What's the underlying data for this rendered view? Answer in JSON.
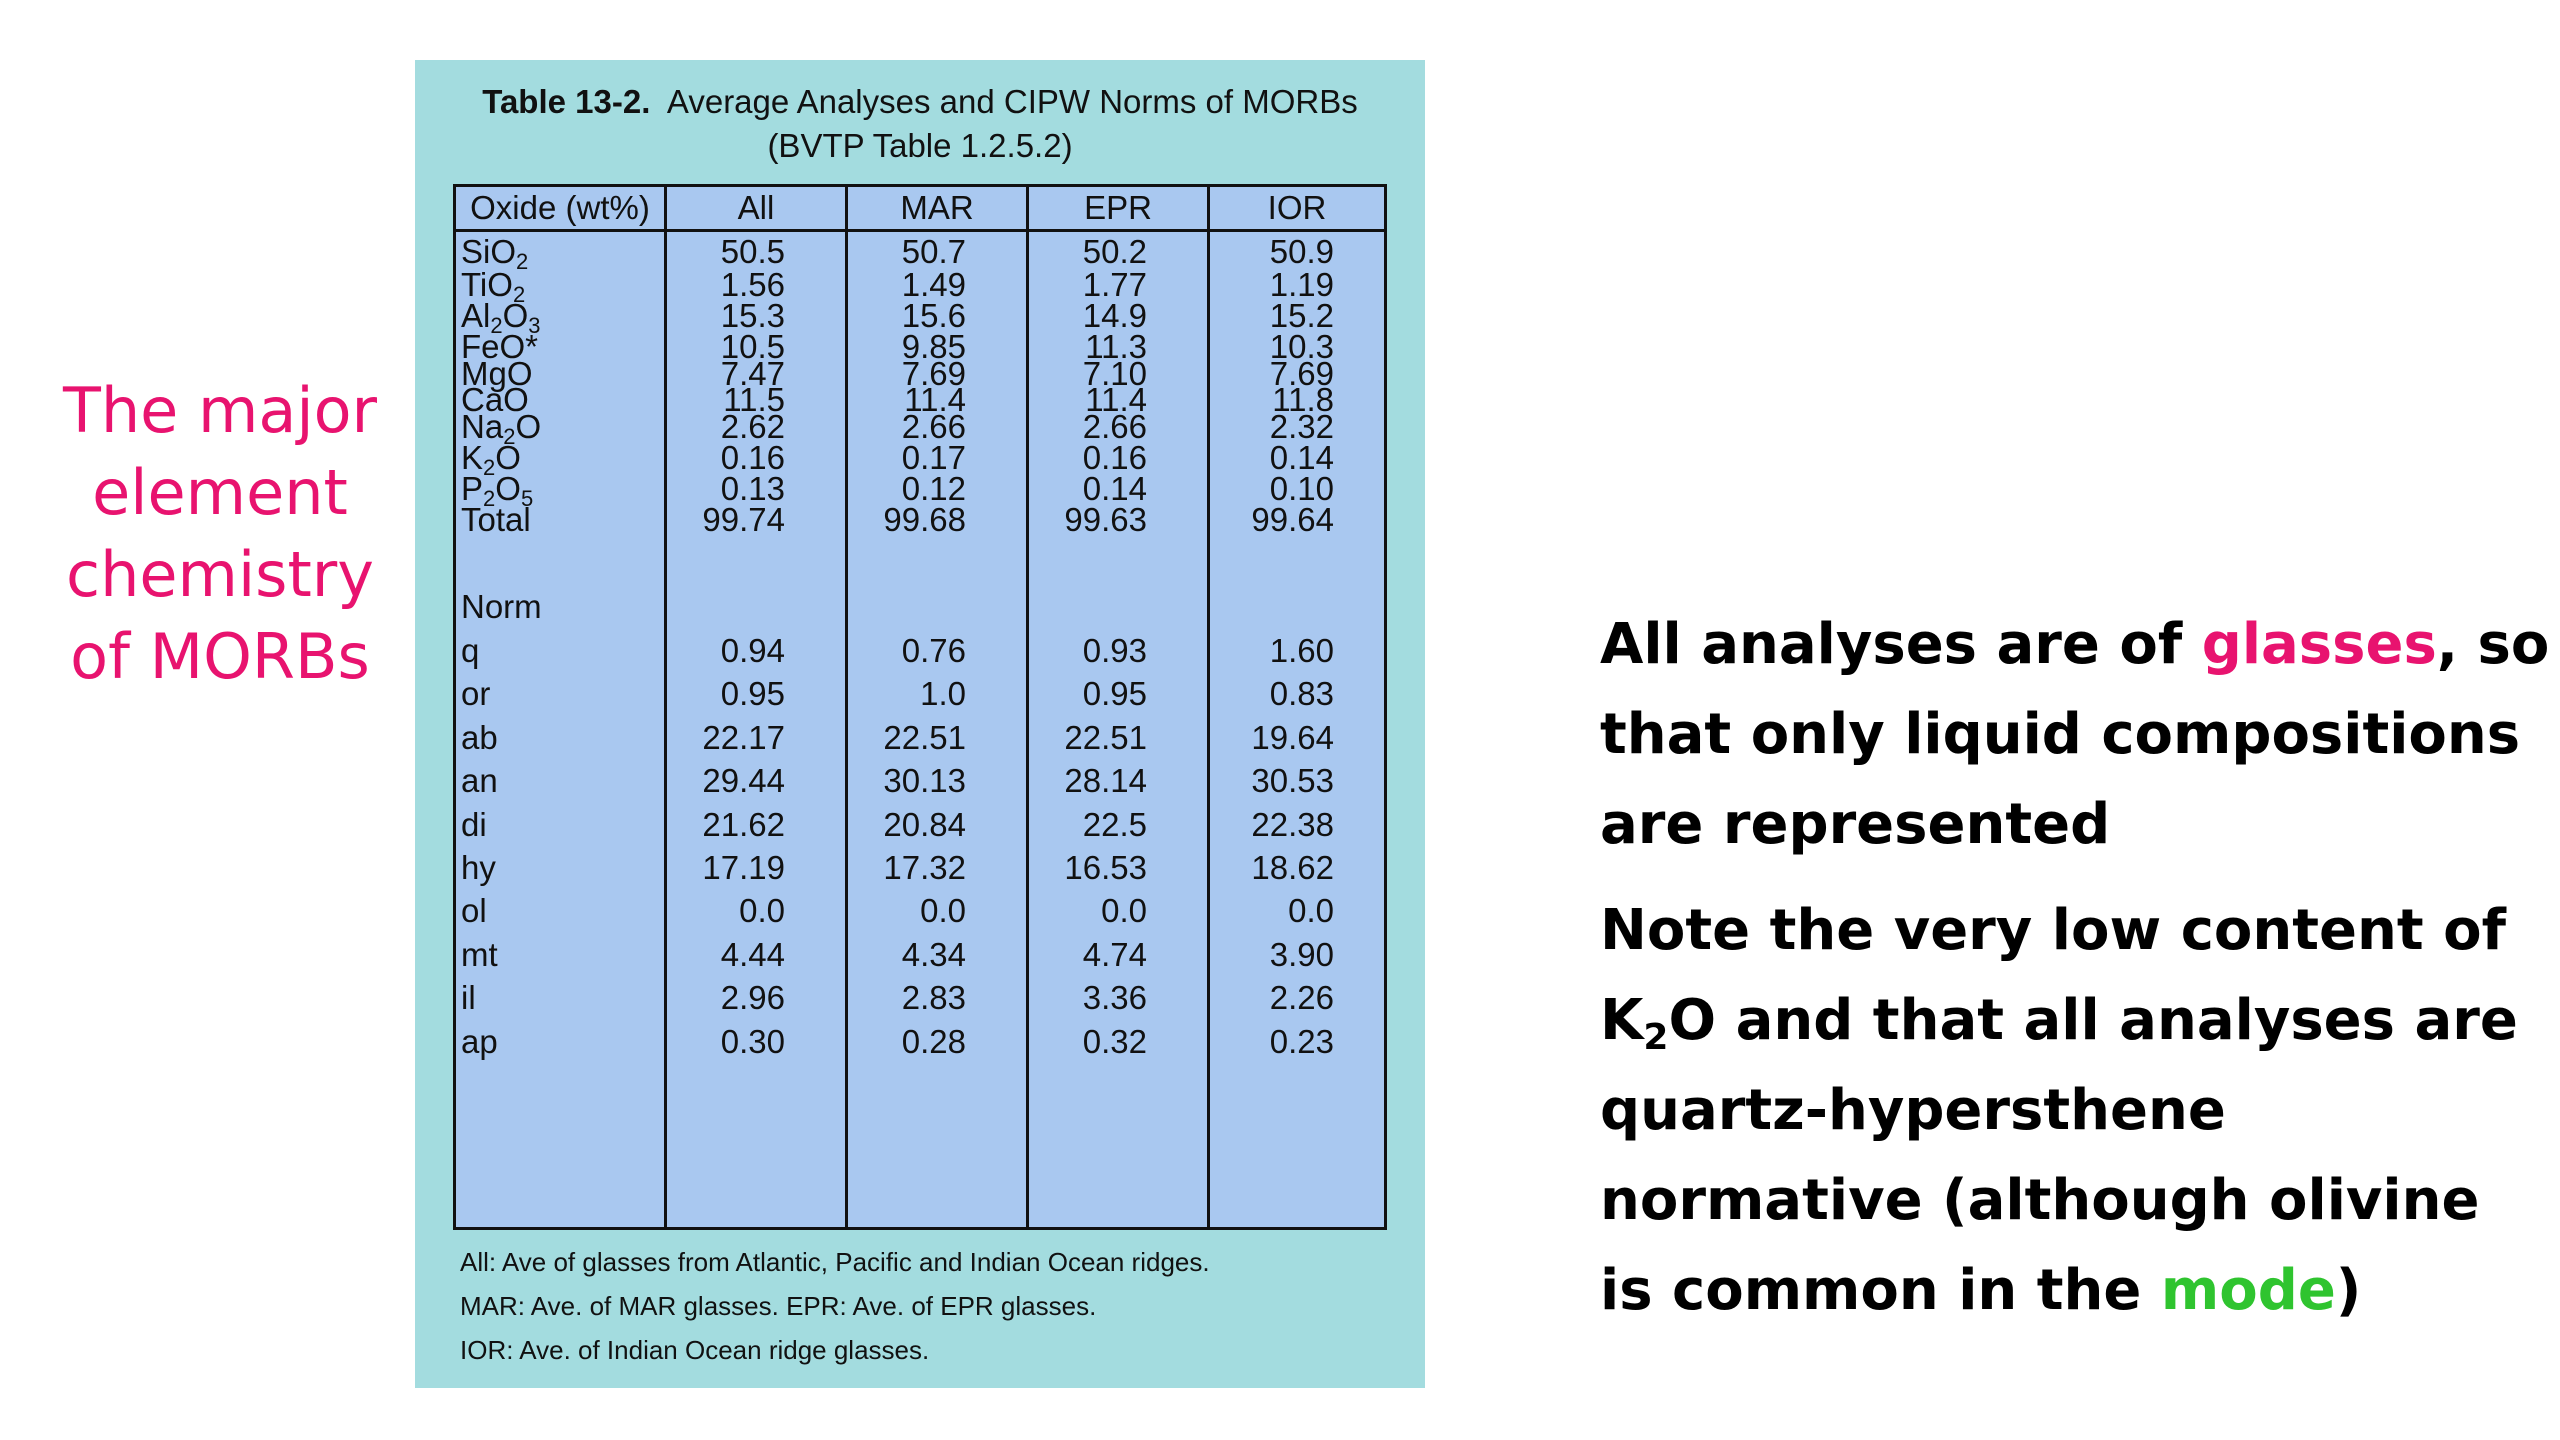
{
  "left_caption": {
    "lines": [
      "The major",
      "element",
      "chemistry",
      "of MORBs"
    ]
  },
  "table": {
    "caption_label": "Table 13-2.",
    "caption_title": "Average Analyses and CIPW Norms of MORBs",
    "caption_sub": "(BVTP Table 1.2.5.2)",
    "headers": [
      "Oxide (wt%)",
      "All",
      "MAR",
      "EPR",
      "IOR"
    ],
    "oxide_rows": [
      {
        "base": "SiO",
        "sub": "2",
        "tail": "",
        "values": [
          "50.5",
          "50.7",
          "50.2",
          "50.9"
        ]
      },
      {
        "base": "TiO",
        "sub": "2",
        "tail": "",
        "values": [
          "1.56",
          "1.49",
          "1.77",
          "1.19"
        ]
      },
      {
        "base": "Al",
        "sub": "2",
        "tail": "O",
        "sub2": "3",
        "values": [
          "15.3",
          "15.6",
          "14.9",
          "15.2"
        ]
      },
      {
        "base": "FeO*",
        "sub": "",
        "tail": "",
        "values": [
          "10.5",
          "9.85",
          "11.3",
          "10.3"
        ]
      },
      {
        "base": "MgO",
        "sub": "",
        "tail": "",
        "values": [
          "7.47",
          "7.69",
          "7.10",
          "7.69"
        ]
      },
      {
        "base": "CaO",
        "sub": "",
        "tail": "",
        "values": [
          "11.5",
          "11.4",
          "11.4",
          "11.8"
        ]
      },
      {
        "base": "Na",
        "sub": "2",
        "tail": "O",
        "values": [
          "2.62",
          "2.66",
          "2.66",
          "2.32"
        ]
      },
      {
        "base": "K",
        "sub": "2",
        "tail": "O",
        "values": [
          "0.16",
          "0.17",
          "0.16",
          "0.14"
        ]
      },
      {
        "base": "P",
        "sub": "2",
        "tail": "O",
        "sub2": "5",
        "values": [
          "0.13",
          "0.12",
          "0.14",
          "0.10"
        ]
      },
      {
        "base": "Total",
        "sub": "",
        "tail": "",
        "values": [
          "99.74",
          "99.68",
          "99.63",
          "99.64"
        ]
      }
    ],
    "norm_label": "Norm",
    "norm_rows": [
      {
        "label": "q",
        "values": [
          "0.94",
          "0.76",
          "0.93",
          "1.60"
        ]
      },
      {
        "label": "or",
        "values": [
          "0.95",
          "1.0",
          "0.95",
          "0.83"
        ]
      },
      {
        "label": "ab",
        "values": [
          "22.17",
          "22.51",
          "22.51",
          "19.64"
        ]
      },
      {
        "label": "an",
        "values": [
          "29.44",
          "30.13",
          "28.14",
          "30.53"
        ]
      },
      {
        "label": "di",
        "values": [
          "21.62",
          "20.84",
          "22.5",
          "22.38"
        ]
      },
      {
        "label": "hy",
        "values": [
          "17.19",
          "17.32",
          "16.53",
          "18.62"
        ]
      },
      {
        "label": "ol",
        "values": [
          "0.0",
          "0.0",
          "0.0",
          "0.0"
        ]
      },
      {
        "label": "mt",
        "values": [
          "4.44",
          "4.34",
          "4.74",
          "3.90"
        ]
      },
      {
        "label": "il",
        "values": [
          "2.96",
          "2.83",
          "3.36",
          "2.26"
        ]
      },
      {
        "label": "ap",
        "values": [
          "0.30",
          "0.28",
          "0.32",
          "0.23"
        ]
      }
    ],
    "footnotes": [
      "All:  Ave of glasses from Atlantic, Pacific and Indian Ocean ridges.",
      "MAR:  Ave. of MAR glasses.  EPR:  Ave. of EPR glasses.",
      "IOR:  Ave. of Indian Ocean ridge glasses."
    ]
  },
  "right_text": {
    "p1_line1_a": "All analyses are of ",
    "p1_line1_hl": "glasses",
    "p1_line1_b": ", so",
    "p1_line2": "that only liquid compositions",
    "p1_line3": "are represented",
    "p2_line1": "Note the very low content of",
    "p2_line2_a": "K",
    "p2_line2_sub": "2",
    "p2_line2_b": "O and that all analyses are",
    "p2_line3": "quartz-hypersthene",
    "p2_line4": "normative (although olivine",
    "p2_line5_a": "is common in the ",
    "p2_line5_hl": "mode",
    "p2_line5_b": ")"
  },
  "colors": {
    "pink": "#e8136f",
    "green": "#2fc42f",
    "panel": "#a3dcdf",
    "table_fill": "#a9c8f0"
  }
}
